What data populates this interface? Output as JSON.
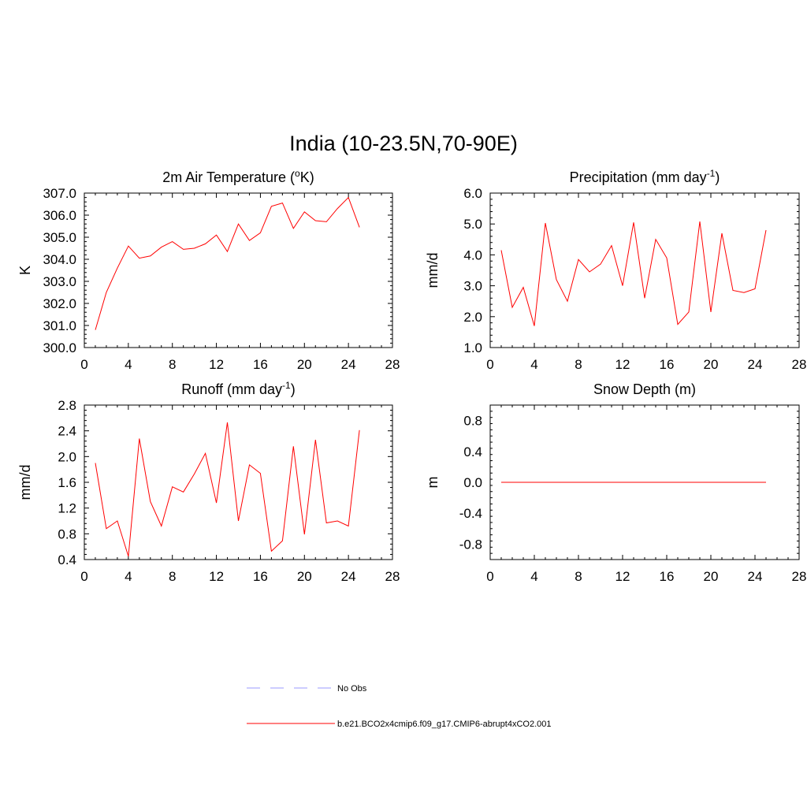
{
  "page_title": "India (10-23.5N,70-90E)",
  "colors": {
    "model_line": "#ff0000",
    "obs_line": "#9999ff",
    "axis": "#000000"
  },
  "legend": {
    "obs_label": "No Obs",
    "model_label": "b.e21.BCO2x4cmip6.f09_g17.CMIP6-abrupt4xCO2.001"
  },
  "chart_data": [
    {
      "type": "line",
      "title": "2m Air Temperature (",
      "title_sup": "o",
      "title_tail": "K)",
      "ylabel": "K",
      "xlim": [
        0,
        28
      ],
      "ylim": [
        300.0,
        307.0
      ],
      "xticks": [
        0,
        4,
        8,
        12,
        16,
        20,
        24,
        28
      ],
      "yticks": [
        300.0,
        301.0,
        302.0,
        303.0,
        304.0,
        305.0,
        306.0,
        307.0
      ],
      "ytick_labels": [
        "300.0",
        "301.0",
        "302.0",
        "303.0",
        "304.0",
        "305.0",
        "306.0",
        "307.0"
      ],
      "x": [
        1,
        2,
        3,
        4,
        5,
        6,
        7,
        8,
        9,
        10,
        11,
        12,
        13,
        14,
        15,
        16,
        17,
        18,
        19,
        20,
        21,
        22,
        23,
        24,
        25
      ],
      "series": [
        {
          "values": [
            300.8,
            302.5,
            303.6,
            304.6,
            304.05,
            304.15,
            304.55,
            304.8,
            304.45,
            304.5,
            304.7,
            305.1,
            304.35,
            305.6,
            304.85,
            305.2,
            306.4,
            306.55,
            305.4,
            306.15,
            305.75,
            305.7,
            306.3,
            306.8,
            305.45
          ]
        }
      ]
    },
    {
      "type": "line",
      "title": "Precipitation (mm day",
      "title_sup": "-1",
      "title_tail": ")",
      "ylabel": "mm/d",
      "xlim": [
        0,
        28
      ],
      "ylim": [
        1.0,
        6.0
      ],
      "xticks": [
        0,
        4,
        8,
        12,
        16,
        20,
        24,
        28
      ],
      "yticks": [
        1.0,
        2.0,
        3.0,
        4.0,
        5.0,
        6.0
      ],
      "ytick_labels": [
        "1.0",
        "2.0",
        "3.0",
        "4.0",
        "5.0",
        "6.0"
      ],
      "x": [
        1,
        2,
        3,
        4,
        5,
        6,
        7,
        8,
        9,
        10,
        11,
        12,
        13,
        14,
        15,
        16,
        17,
        18,
        19,
        20,
        21,
        22,
        23,
        24,
        25
      ],
      "series": [
        {
          "values": [
            4.15,
            2.3,
            2.95,
            1.7,
            5.03,
            3.2,
            2.5,
            3.85,
            3.45,
            3.7,
            4.3,
            3.0,
            5.05,
            2.6,
            4.5,
            3.9,
            1.75,
            2.15,
            5.08,
            2.15,
            4.7,
            2.85,
            2.78,
            2.9,
            4.8
          ]
        }
      ]
    },
    {
      "type": "line",
      "title": "Runoff (mm day",
      "title_sup": "-1",
      "title_tail": ")",
      "ylabel": "mm/d",
      "xlim": [
        0,
        28
      ],
      "ylim": [
        0.4,
        2.8
      ],
      "xticks": [
        0,
        4,
        8,
        12,
        16,
        20,
        24,
        28
      ],
      "yticks": [
        0.4,
        0.8,
        1.2,
        1.6,
        2.0,
        2.4,
        2.8
      ],
      "ytick_labels": [
        "0.4",
        "0.8",
        "1.2",
        "1.6",
        "2.0",
        "2.4",
        "2.8"
      ],
      "x": [
        1,
        2,
        3,
        4,
        5,
        6,
        7,
        8,
        9,
        10,
        11,
        12,
        13,
        14,
        15,
        16,
        17,
        18,
        19,
        20,
        21,
        22,
        23,
        24,
        25
      ],
      "series": [
        {
          "values": [
            1.9,
            0.88,
            1.0,
            0.45,
            2.28,
            1.3,
            0.92,
            1.53,
            1.45,
            1.73,
            2.05,
            1.28,
            2.53,
            1.0,
            1.87,
            1.74,
            0.53,
            0.69,
            2.16,
            0.79,
            2.26,
            0.97,
            1.0,
            0.92,
            2.41
          ]
        }
      ]
    },
    {
      "type": "line",
      "title": "Snow Depth (m)",
      "title_sup": "",
      "title_tail": "",
      "ylabel": "m",
      "xlim": [
        0,
        28
      ],
      "ylim": [
        -1.0,
        1.0
      ],
      "xticks": [
        0,
        4,
        8,
        12,
        16,
        20,
        24,
        28
      ],
      "yticks": [
        -0.8,
        -0.4,
        0.0,
        0.4,
        0.8
      ],
      "ytick_labels": [
        "-0.8",
        "-0.4",
        "0.0",
        "0.4",
        "0.8"
      ],
      "x": [
        1,
        2,
        3,
        4,
        5,
        6,
        7,
        8,
        9,
        10,
        11,
        12,
        13,
        14,
        15,
        16,
        17,
        18,
        19,
        20,
        21,
        22,
        23,
        24,
        25
      ],
      "series": [
        {
          "values": [
            0,
            0,
            0,
            0,
            0,
            0,
            0,
            0,
            0,
            0,
            0,
            0,
            0,
            0,
            0,
            0,
            0,
            0,
            0,
            0,
            0,
            0,
            0,
            0,
            0
          ]
        }
      ]
    }
  ]
}
